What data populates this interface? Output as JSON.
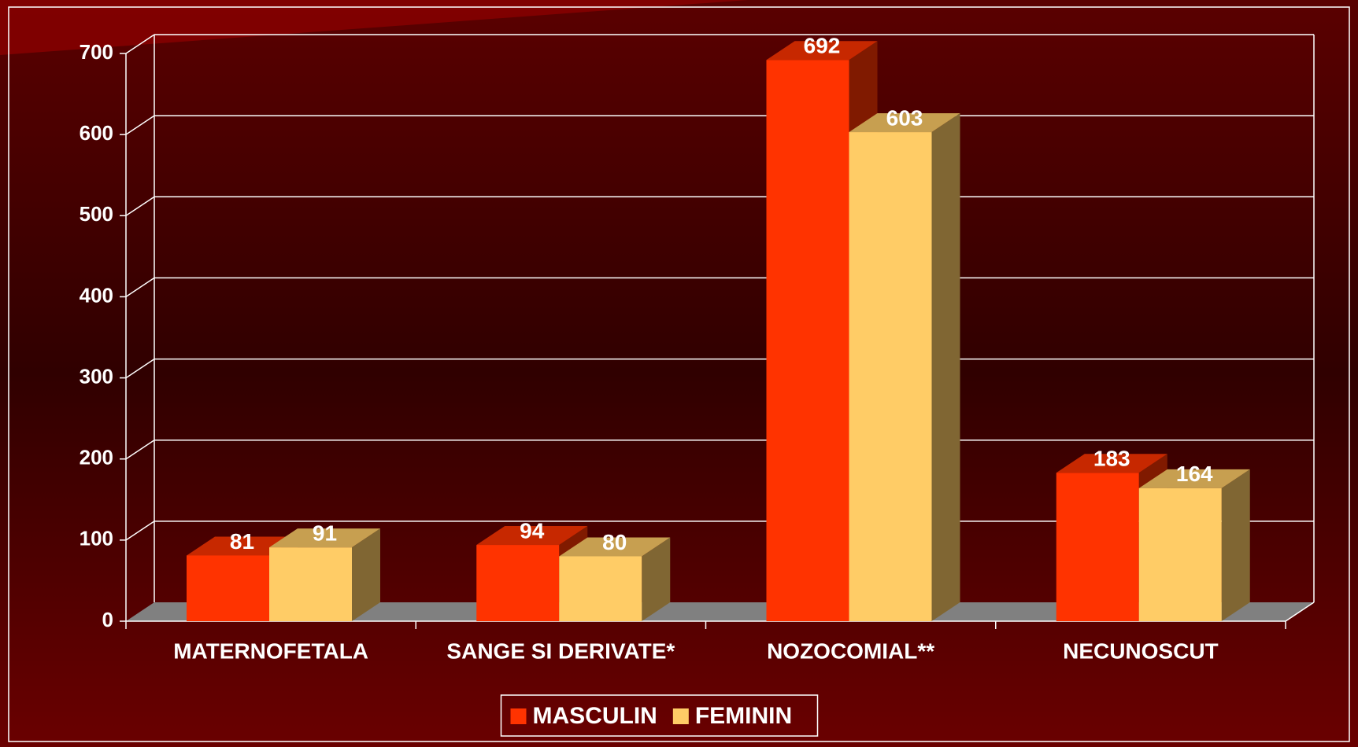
{
  "chart_data": {
    "type": "bar3d",
    "categories": [
      "MATERNOFETALA",
      "SANGE SI DERIVATE*",
      "NOZOCOMIAL**",
      "NECUNOSCUT"
    ],
    "series": [
      {
        "name": "MASCULIN",
        "color": "#ff3300",
        "values": [
          81,
          94,
          692,
          183
        ]
      },
      {
        "name": "FEMININ",
        "color": "#ffcc66",
        "values": [
          91,
          80,
          603,
          164
        ]
      }
    ],
    "ylim": [
      0,
      700
    ],
    "yticks": [
      0,
      100,
      200,
      300,
      400,
      500,
      600,
      700
    ],
    "grid": true,
    "legend": "bottom"
  }
}
